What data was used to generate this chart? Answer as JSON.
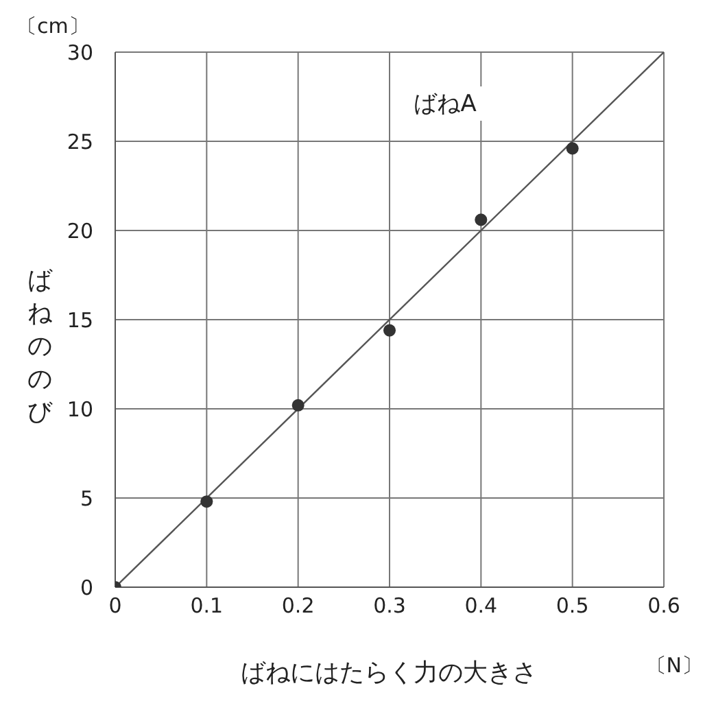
{
  "chart_data": {
    "type": "scatter",
    "xlabel": "ばねにはたらく力の大きさ",
    "ylabel": "ばねののび",
    "annotations": [
      "〔cm〕",
      "〔N〕"
    ],
    "x": [
      0,
      0.1,
      0.2,
      0.3,
      0.4,
      0.5
    ],
    "xlim": [
      0,
      0.6
    ],
    "xticks": [
      0,
      0.1,
      0.2,
      0.3,
      0.4,
      0.5,
      0.6
    ],
    "ylim": [
      0,
      30
    ],
    "yticks": [
      0,
      5,
      10,
      15,
      20,
      25,
      30
    ],
    "grid": true,
    "series": [
      {
        "color": "#333333",
        "marker": "circle",
        "values": [
          0,
          4.8,
          10.2,
          14.4,
          20.6,
          24.6
        ]
      },
      {
        "name": "ばねA",
        "type": "line",
        "marker": "none",
        "x": [
          0,
          0.6
        ],
        "values": [
          0,
          30
        ],
        "color": "#555555"
      }
    ]
  }
}
